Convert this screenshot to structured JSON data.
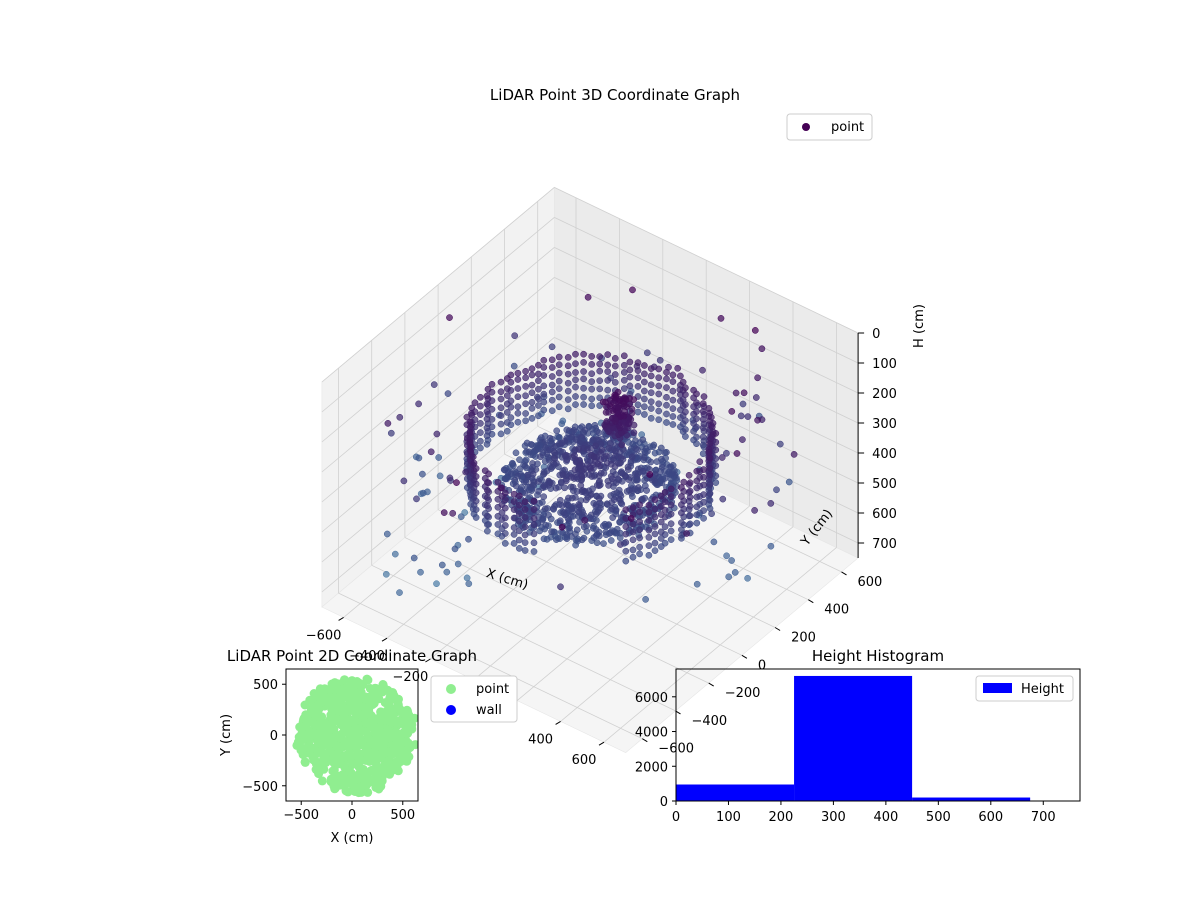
{
  "colors": {
    "scatter3d_dark": "#440154",
    "scatter3d_mid": "#3b528b",
    "scatter3d_light": "#4f7fa8",
    "point_2d": "#90ee90",
    "wall_2d": "#0000ff",
    "histogram": "#0000ff",
    "pane": "#f2f2f2",
    "grid": "#d0d0d0"
  },
  "chart_data": [
    {
      "type": "scatter",
      "title": "LiDAR Point 3D Coordinate Graph",
      "xlabel": "X (cm)",
      "ylabel": "Y (cm)",
      "zlabel": "H (cm)",
      "xlim": [
        -700,
        700
      ],
      "ylim": [
        -700,
        700
      ],
      "zlim": [
        0,
        750
      ],
      "z_inverted": true,
      "x_ticks": [
        "−600",
        "−400",
        "−200",
        "0",
        "200",
        "400",
        "600"
      ],
      "y_ticks": [
        "−600",
        "−400",
        "−200",
        "0",
        "200",
        "400",
        "600"
      ],
      "z_ticks": [
        "0",
        "100",
        "200",
        "300",
        "400",
        "500",
        "600",
        "700"
      ],
      "legend": {
        "entries": [
          "point"
        ],
        "placement": "top-right"
      },
      "grid": true,
      "structure": {
        "wall_ring_radius": 450,
        "wall_height_range": [
          250,
          430
        ],
        "inner_mound_radius": 330,
        "outlier_count": 150
      }
    },
    {
      "type": "scatter",
      "title": "LiDAR Point 2D Coordinate Graph",
      "xlabel": "X (cm)",
      "ylabel": "Y (cm)",
      "xlim": [
        -650,
        650
      ],
      "ylim": [
        -650,
        650
      ],
      "x_ticks": [
        "−500",
        "0",
        "500"
      ],
      "y_ticks": [
        "−500",
        "0",
        "500"
      ],
      "legend": {
        "entries": [
          "point",
          "wall"
        ],
        "placement": "outside-right"
      },
      "series": [
        {
          "name": "point",
          "approx_radius": 560
        },
        {
          "name": "wall",
          "count": 0
        }
      ]
    },
    {
      "type": "bar",
      "title": "Height Histogram",
      "xlim": [
        0,
        770
      ],
      "ylim": [
        0,
        7600
      ],
      "x_ticks": [
        "0",
        "100",
        "200",
        "300",
        "400",
        "500",
        "600",
        "700"
      ],
      "y_ticks": [
        "0",
        "2000",
        "4000",
        "6000"
      ],
      "bins": [
        {
          "x0": 0,
          "x1": 225,
          "count": 950
        },
        {
          "x0": 225,
          "x1": 450,
          "count": 7200
        },
        {
          "x0": 450,
          "x1": 675,
          "count": 200
        }
      ],
      "legend": {
        "entries": [
          "Height"
        ],
        "placement": "top-right"
      }
    }
  ]
}
